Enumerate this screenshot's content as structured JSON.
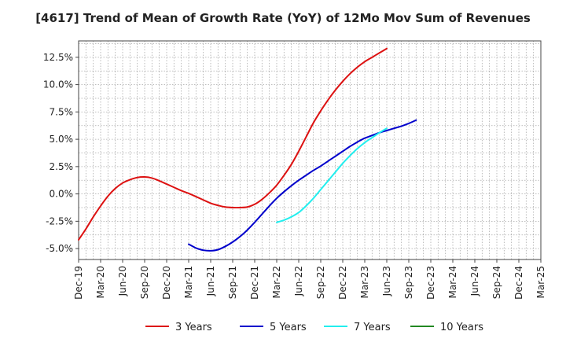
{
  "chart_data": {
    "type": "line",
    "title": "[4617]  Trend of Mean of Growth Rate (YoY) of 12Mo Mov Sum of Revenues",
    "xlabel": "",
    "ylabel": "",
    "x_ticks": [
      "Dec-19",
      "Mar-20",
      "Jun-20",
      "Sep-20",
      "Dec-20",
      "Mar-21",
      "Jun-21",
      "Sep-21",
      "Dec-21",
      "Mar-22",
      "Jun-22",
      "Sep-22",
      "Dec-22",
      "Mar-23",
      "Jun-23",
      "Sep-23",
      "Dec-23",
      "Mar-24",
      "Jun-24",
      "Sep-24",
      "Dec-24",
      "Mar-25"
    ],
    "y_ticks": [
      {
        "value": 12.5,
        "label": "12.5%"
      },
      {
        "value": 10.0,
        "label": "10.0%"
      },
      {
        "value": 7.5,
        "label": "7.5%"
      },
      {
        "value": 5.0,
        "label": "5.0%"
      },
      {
        "value": 2.5,
        "label": "2.5%"
      },
      {
        "value": 0.0,
        "label": "0.0%"
      },
      {
        "value": -2.5,
        "label": "-2.5%"
      },
      {
        "value": -5.0,
        "label": "-5.0%"
      }
    ],
    "ylim": [
      -6.0,
      14.0
    ],
    "grid": true,
    "legend_position": "bottom",
    "series": [
      {
        "name": "3 Years",
        "color": "#dd1111",
        "start_index": 0,
        "values": [
          -4.2,
          -3.2,
          -2.1,
          -1.1,
          -0.2,
          0.5,
          1.0,
          1.3,
          1.5,
          1.55,
          1.45,
          1.2,
          0.9,
          0.6,
          0.3,
          0.05,
          -0.25,
          -0.55,
          -0.85,
          -1.05,
          -1.2,
          -1.25,
          -1.25,
          -1.2,
          -0.95,
          -0.5,
          0.1,
          0.8,
          1.7,
          2.7,
          3.9,
          5.2,
          6.5,
          7.6,
          8.6,
          9.5,
          10.3,
          11.0,
          11.6,
          12.1,
          12.5,
          12.9,
          13.3
        ]
      },
      {
        "name": "5 Years",
        "color": "#0000cc",
        "start_index": 15,
        "values": [
          -4.6,
          -4.95,
          -5.15,
          -5.2,
          -5.1,
          -4.8,
          -4.4,
          -3.9,
          -3.3,
          -2.6,
          -1.85,
          -1.1,
          -0.4,
          0.2,
          0.75,
          1.25,
          1.7,
          2.15,
          2.55,
          3.0,
          3.45,
          3.9,
          4.35,
          4.75,
          5.1,
          5.35,
          5.6,
          5.8,
          6.0,
          6.2,
          6.45,
          6.75
        ]
      },
      {
        "name": "7 Years",
        "color": "#22eeee",
        "start_index": 27,
        "values": [
          -2.6,
          -2.4,
          -2.1,
          -1.7,
          -1.1,
          -0.4,
          0.4,
          1.2,
          2.0,
          2.8,
          3.5,
          4.15,
          4.7,
          5.15,
          5.6,
          6.0
        ]
      },
      {
        "name": "10 Years",
        "color": "#228822",
        "start_index": 0,
        "values": []
      }
    ]
  }
}
